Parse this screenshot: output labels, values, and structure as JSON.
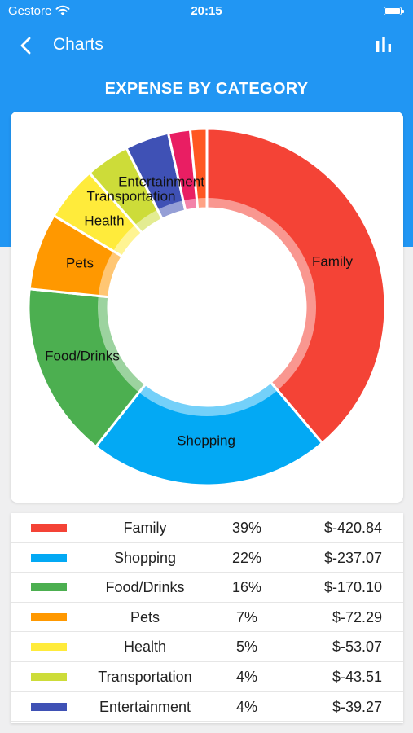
{
  "status_bar": {
    "carrier": "Gestore",
    "time": "20:15"
  },
  "nav": {
    "title": "Charts",
    "back_icon": "chevron-left-icon",
    "action_icon": "bar-chart-icon"
  },
  "section_title": "EXPENSE BY CATEGORY",
  "colors": {
    "primary": "#2196f3",
    "background": "#efeff0"
  },
  "chart_data": {
    "type": "pie",
    "style": "donut",
    "categories": [
      "Family",
      "Shopping",
      "Food/Drinks",
      "Pets",
      "Health",
      "Transportation",
      "Entertainment",
      "",
      ""
    ],
    "values": [
      39,
      22,
      16,
      7,
      5,
      4,
      4,
      2,
      1.5
    ],
    "colors": [
      "#f44336",
      "#03a9f4",
      "#4caf50",
      "#ff9800",
      "#ffeb3b",
      "#cddc39",
      "#3f51b5",
      "#e91e63",
      "#ff5722"
    ],
    "legend": "bottom"
  },
  "legend": {
    "rows": [
      {
        "name": "Family",
        "percent": "39%",
        "amount": "$-420.84",
        "color": "#f44336"
      },
      {
        "name": "Shopping",
        "percent": "22%",
        "amount": "$-237.07",
        "color": "#03a9f4"
      },
      {
        "name": "Food/Drinks",
        "percent": "16%",
        "amount": "$-170.10",
        "color": "#4caf50"
      },
      {
        "name": "Pets",
        "percent": "7%",
        "amount": "$-72.29",
        "color": "#ff9800"
      },
      {
        "name": "Health",
        "percent": "5%",
        "amount": "$-53.07",
        "color": "#ffeb3b"
      },
      {
        "name": "Transportation",
        "percent": "4%",
        "amount": "$-43.51",
        "color": "#cddc39"
      },
      {
        "name": "Entertainment",
        "percent": "4%",
        "amount": "$-39.27",
        "color": "#3f51b5"
      }
    ]
  }
}
